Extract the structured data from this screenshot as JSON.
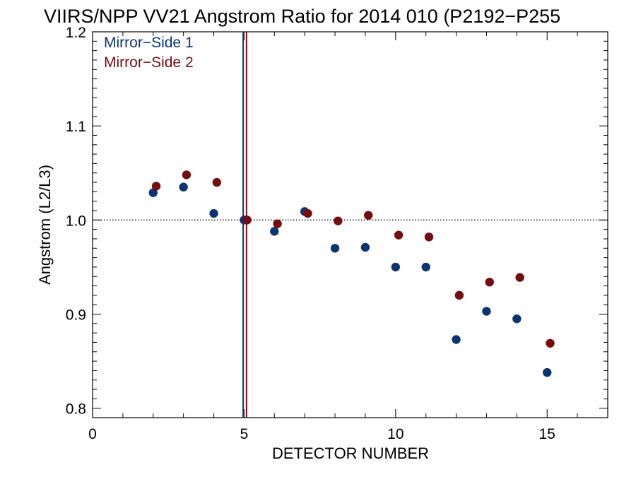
{
  "chart_data": {
    "type": "scatter",
    "title": "VIIRS/NPP VV21 Angstrom Ratio for 2014 010 (P2192−P255",
    "xlabel": "DETECTOR NUMBER",
    "ylabel": "Angstrom (L2/L3)",
    "xlim": [
      0,
      17
    ],
    "ylim": [
      0.79,
      1.2
    ],
    "x_ticks": [
      0,
      5,
      10,
      15
    ],
    "x_tick_labels": [
      "0",
      "5",
      "10",
      "15"
    ],
    "y_ticks": [
      0.8,
      0.9,
      1.0,
      1.1,
      1.2
    ],
    "y_tick_labels": [
      "0.8",
      "0.9",
      "1.0",
      "1.1",
      "1.2"
    ],
    "reference_line_y": 1.0,
    "legend_position": "top-left",
    "series": [
      {
        "name": "Mirror−Side 1",
        "color": "#0d3470",
        "x": [
          2,
          3,
          4,
          5,
          6,
          7,
          8,
          9,
          10,
          11,
          12,
          13,
          14,
          15
        ],
        "y": [
          1.029,
          1.035,
          1.007,
          1.0,
          0.988,
          1.009,
          0.97,
          0.971,
          0.95,
          0.95,
          0.873,
          0.903,
          0.895,
          0.838
        ],
        "vline_x": 4.97
      },
      {
        "name": "Mirror−Side 2",
        "color": "#730d12",
        "x": [
          2.1,
          3.1,
          4.1,
          5.1,
          6.1,
          7.1,
          8.1,
          9.1,
          10.1,
          11.1,
          12.1,
          13.1,
          14.1,
          15.1
        ],
        "y": [
          1.036,
          1.048,
          1.04,
          1.0,
          0.996,
          1.007,
          0.999,
          1.005,
          0.984,
          0.982,
          0.92,
          0.934,
          0.939,
          0.869
        ],
        "vline_x": 5.08
      }
    ]
  }
}
